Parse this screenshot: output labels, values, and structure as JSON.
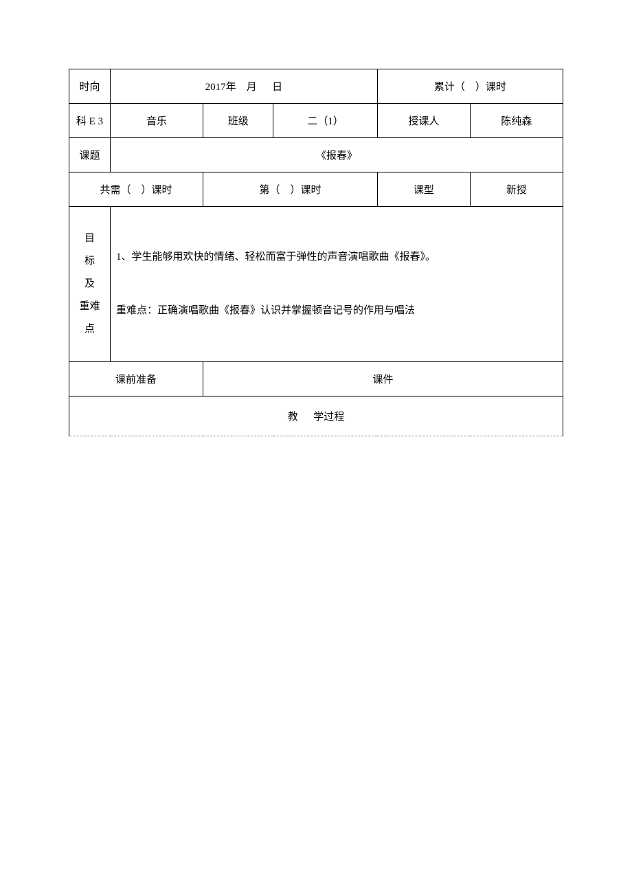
{
  "header": {
    "time_label": "时向",
    "year_prefix": "2017",
    "year_suffix": "年",
    "month_suffix": "月",
    "day_suffix": "日",
    "total_prefix": "累计（",
    "total_suffix": "）课时"
  },
  "row2": {
    "subject_label": "科 E 3",
    "subject_value": "音乐",
    "class_label": "班级",
    "class_value": "二（1）",
    "instructor_label": "授课人",
    "instructor_value": "陈纯森"
  },
  "row3": {
    "topic_label": "课题",
    "topic_value": "《报春》"
  },
  "row4": {
    "total_needed_prefix": "共需（",
    "total_needed_suffix": "）课时",
    "period_prefix": "第（",
    "period_suffix": "）课时",
    "type_label": "课型",
    "type_value": "新授"
  },
  "objectives": {
    "label_line1": "目",
    "label_line2": "标",
    "label_line3": "及",
    "label_line4": "重难",
    "label_line5": "点",
    "content_line1": "1、学生能够用欢快的情绪、轻松而富于弹性的声音演唱歌曲《报春》。",
    "content_line2": "重难点：正确演唱歌曲《报春》认识并掌握顿音记号的作用与唱法"
  },
  "prep": {
    "label": "课前准备",
    "value": "课件"
  },
  "process": {
    "label_part1": "教",
    "label_part2": "学过程"
  }
}
